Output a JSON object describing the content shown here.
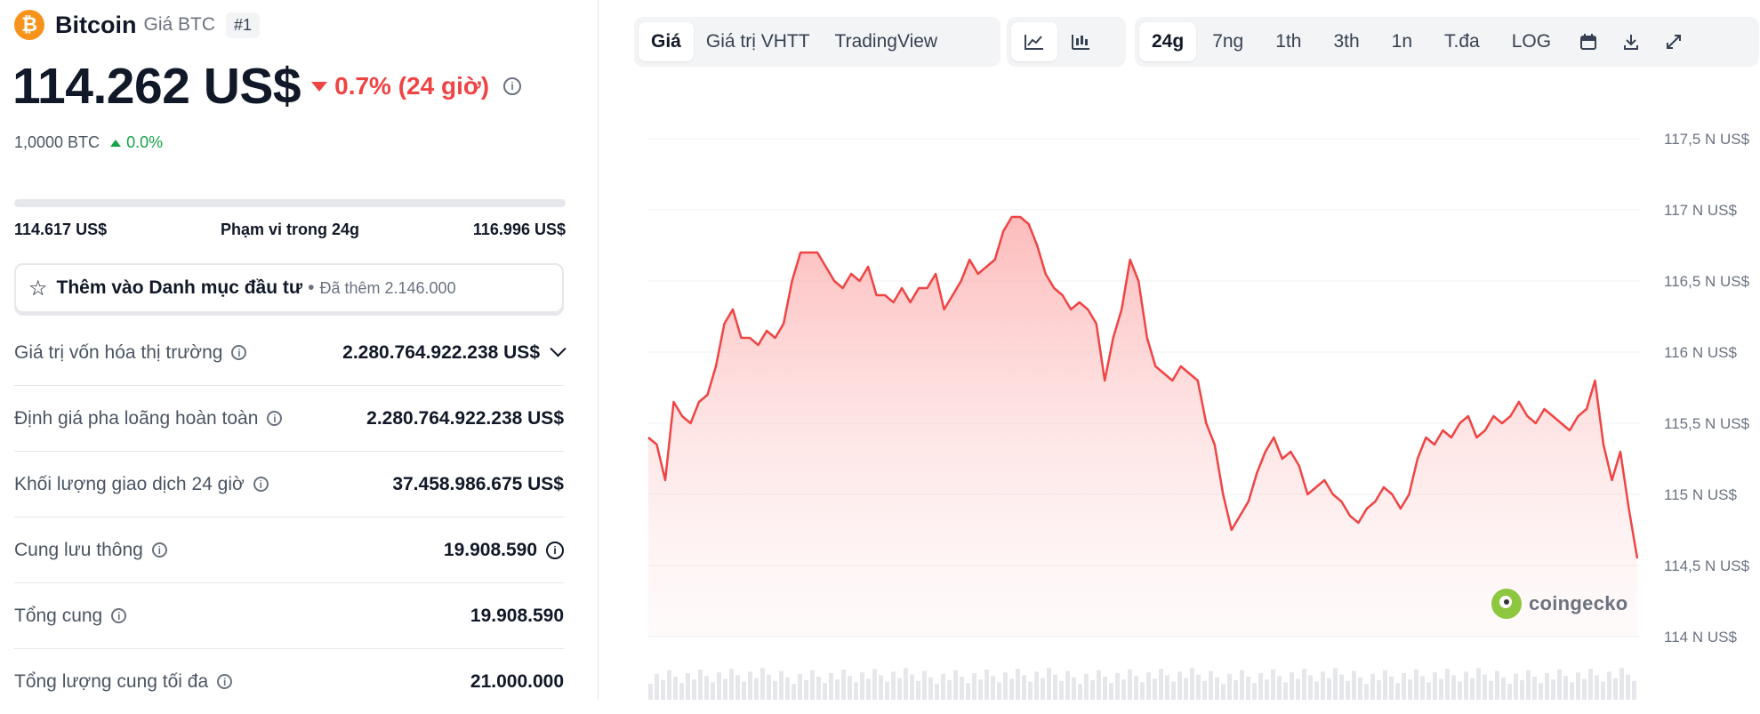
{
  "coin": {
    "name": "Bitcoin",
    "subtitle": "Giá BTC",
    "rank": "#1",
    "logo_symbol": "₿",
    "price": "114.262 US$",
    "change": "0.7% (24 giờ)",
    "change_color": "#ef4444",
    "btc_value": "1,0000 BTC",
    "btc_change": "0.0%"
  },
  "range": {
    "low": "114.617 US$",
    "label": "Phạm vi trong 24g",
    "high": "116.996 US$"
  },
  "watchlist": {
    "label": "Thêm vào Danh mục đầu tư",
    "added": "Đã thêm 2.146.000"
  },
  "stats": [
    {
      "label": "Giá trị vốn hóa thị trường",
      "value": "2.280.764.922.238 US$"
    },
    {
      "label": "Định giá pha loãng hoàn toàn",
      "value": "2.280.764.922.238 US$"
    },
    {
      "label": "Khối lượng giao dịch 24 giờ",
      "value": "37.458.986.675 US$"
    },
    {
      "label": "Cung lưu thông",
      "value": "19.908.590"
    },
    {
      "label": "Tổng cung",
      "value": "19.908.590"
    },
    {
      "label": "Tổng lượng cung tối đa",
      "value": "21.000.000"
    }
  ],
  "toolbar": {
    "view_tabs": [
      "Giá",
      "Giá trị VHTT",
      "TradingView"
    ],
    "active_view": "Giá",
    "chart_icons": [
      "line-chart-icon",
      "candlestick-icon"
    ],
    "ranges": [
      "24g",
      "7ng",
      "1th",
      "3th",
      "1n",
      "T.đa",
      "LOG"
    ],
    "active_range": "24g",
    "action_icons": [
      "calendar-icon",
      "download-icon",
      "expand-icon"
    ]
  },
  "watermark": "coingecko",
  "chart_data": {
    "type": "area",
    "y_ticks": [
      "117,5 N US$",
      "117 N US$",
      "116,5 N US$",
      "116 N US$",
      "115,5 N US$",
      "115 N US$",
      "114,5 N US$",
      "114 N US$"
    ],
    "ylim": [
      114000,
      117500
    ],
    "line_color": "#ef4444",
    "values": [
      115400,
      115350,
      115100,
      115650,
      115550,
      115500,
      115650,
      115700,
      115900,
      116200,
      116300,
      116100,
      116100,
      116050,
      116150,
      116100,
      116200,
      116500,
      116700,
      116700,
      116700,
      116600,
      116500,
      116450,
      116550,
      116500,
      116600,
      116400,
      116400,
      116350,
      116450,
      116350,
      116450,
      116450,
      116550,
      116300,
      116400,
      116500,
      116650,
      116550,
      116600,
      116650,
      116850,
      116950,
      116950,
      116900,
      116750,
      116550,
      116450,
      116400,
      116300,
      116350,
      116300,
      116200,
      115800,
      116100,
      116300,
      116650,
      116500,
      116100,
      115900,
      115850,
      115800,
      115900,
      115850,
      115800,
      115500,
      115350,
      115000,
      114750,
      114850,
      114950,
      115150,
      115300,
      115400,
      115250,
      115300,
      115200,
      115000,
      115050,
      115100,
      115000,
      114950,
      114850,
      114800,
      114900,
      114950,
      115050,
      115000,
      114900,
      115000,
      115250,
      115400,
      115350,
      115450,
      115400,
      115500,
      115550,
      115400,
      115450,
      115550,
      115500,
      115550,
      115650,
      115550,
      115500,
      115600,
      115550,
      115500,
      115450,
      115550,
      115600,
      115800,
      115350,
      115100,
      115300,
      114900,
      114550
    ]
  }
}
